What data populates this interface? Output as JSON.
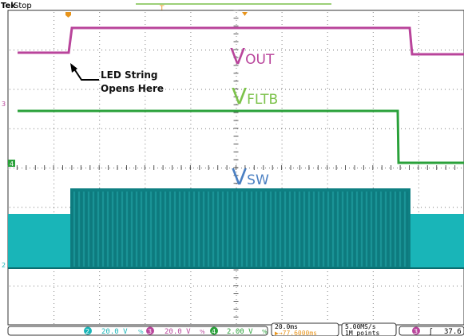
{
  "header": {
    "brand": "Tek",
    "state": "Stop",
    "trigger_pos_marker": "T",
    "horiz_pos_marker": "T"
  },
  "traces": [
    {
      "name": "V",
      "subscript": "OUT",
      "channel_marker": "3",
      "color": "#b9449b"
    },
    {
      "name": "V",
      "subscript": "FLTB",
      "channel_marker": "4",
      "color": "#2aa13a"
    },
    {
      "name": "V",
      "subscript": "SW",
      "channel_marker": "2",
      "color": "#19b5b8"
    }
  ],
  "annotation": {
    "line1": "LED String",
    "line2": "Opens Here"
  },
  "status_bar": {
    "ch2": {
      "num": "2",
      "scale": "20.0 V"
    },
    "ch3": {
      "num": "3",
      "scale": "20.0 V"
    },
    "ch4": {
      "num": "4",
      "scale": "2.00 V"
    },
    "bw_symbol": "%",
    "timebase": "20.0ms",
    "trigger_offset": "▶→77.6000ms",
    "sample_rate": "5.00MS/s",
    "record_length": "1M points",
    "trigger_source": "3",
    "trigger_slope": "ʃ",
    "trigger_level": "37.6"
  },
  "colors": {
    "ch2": "#19b5b8",
    "ch3": "#b9449b",
    "ch4": "#2aa13a",
    "ch2_dark": "#0e7f82",
    "trigger": "#e8941b",
    "grid": "#5a5a5a"
  }
}
